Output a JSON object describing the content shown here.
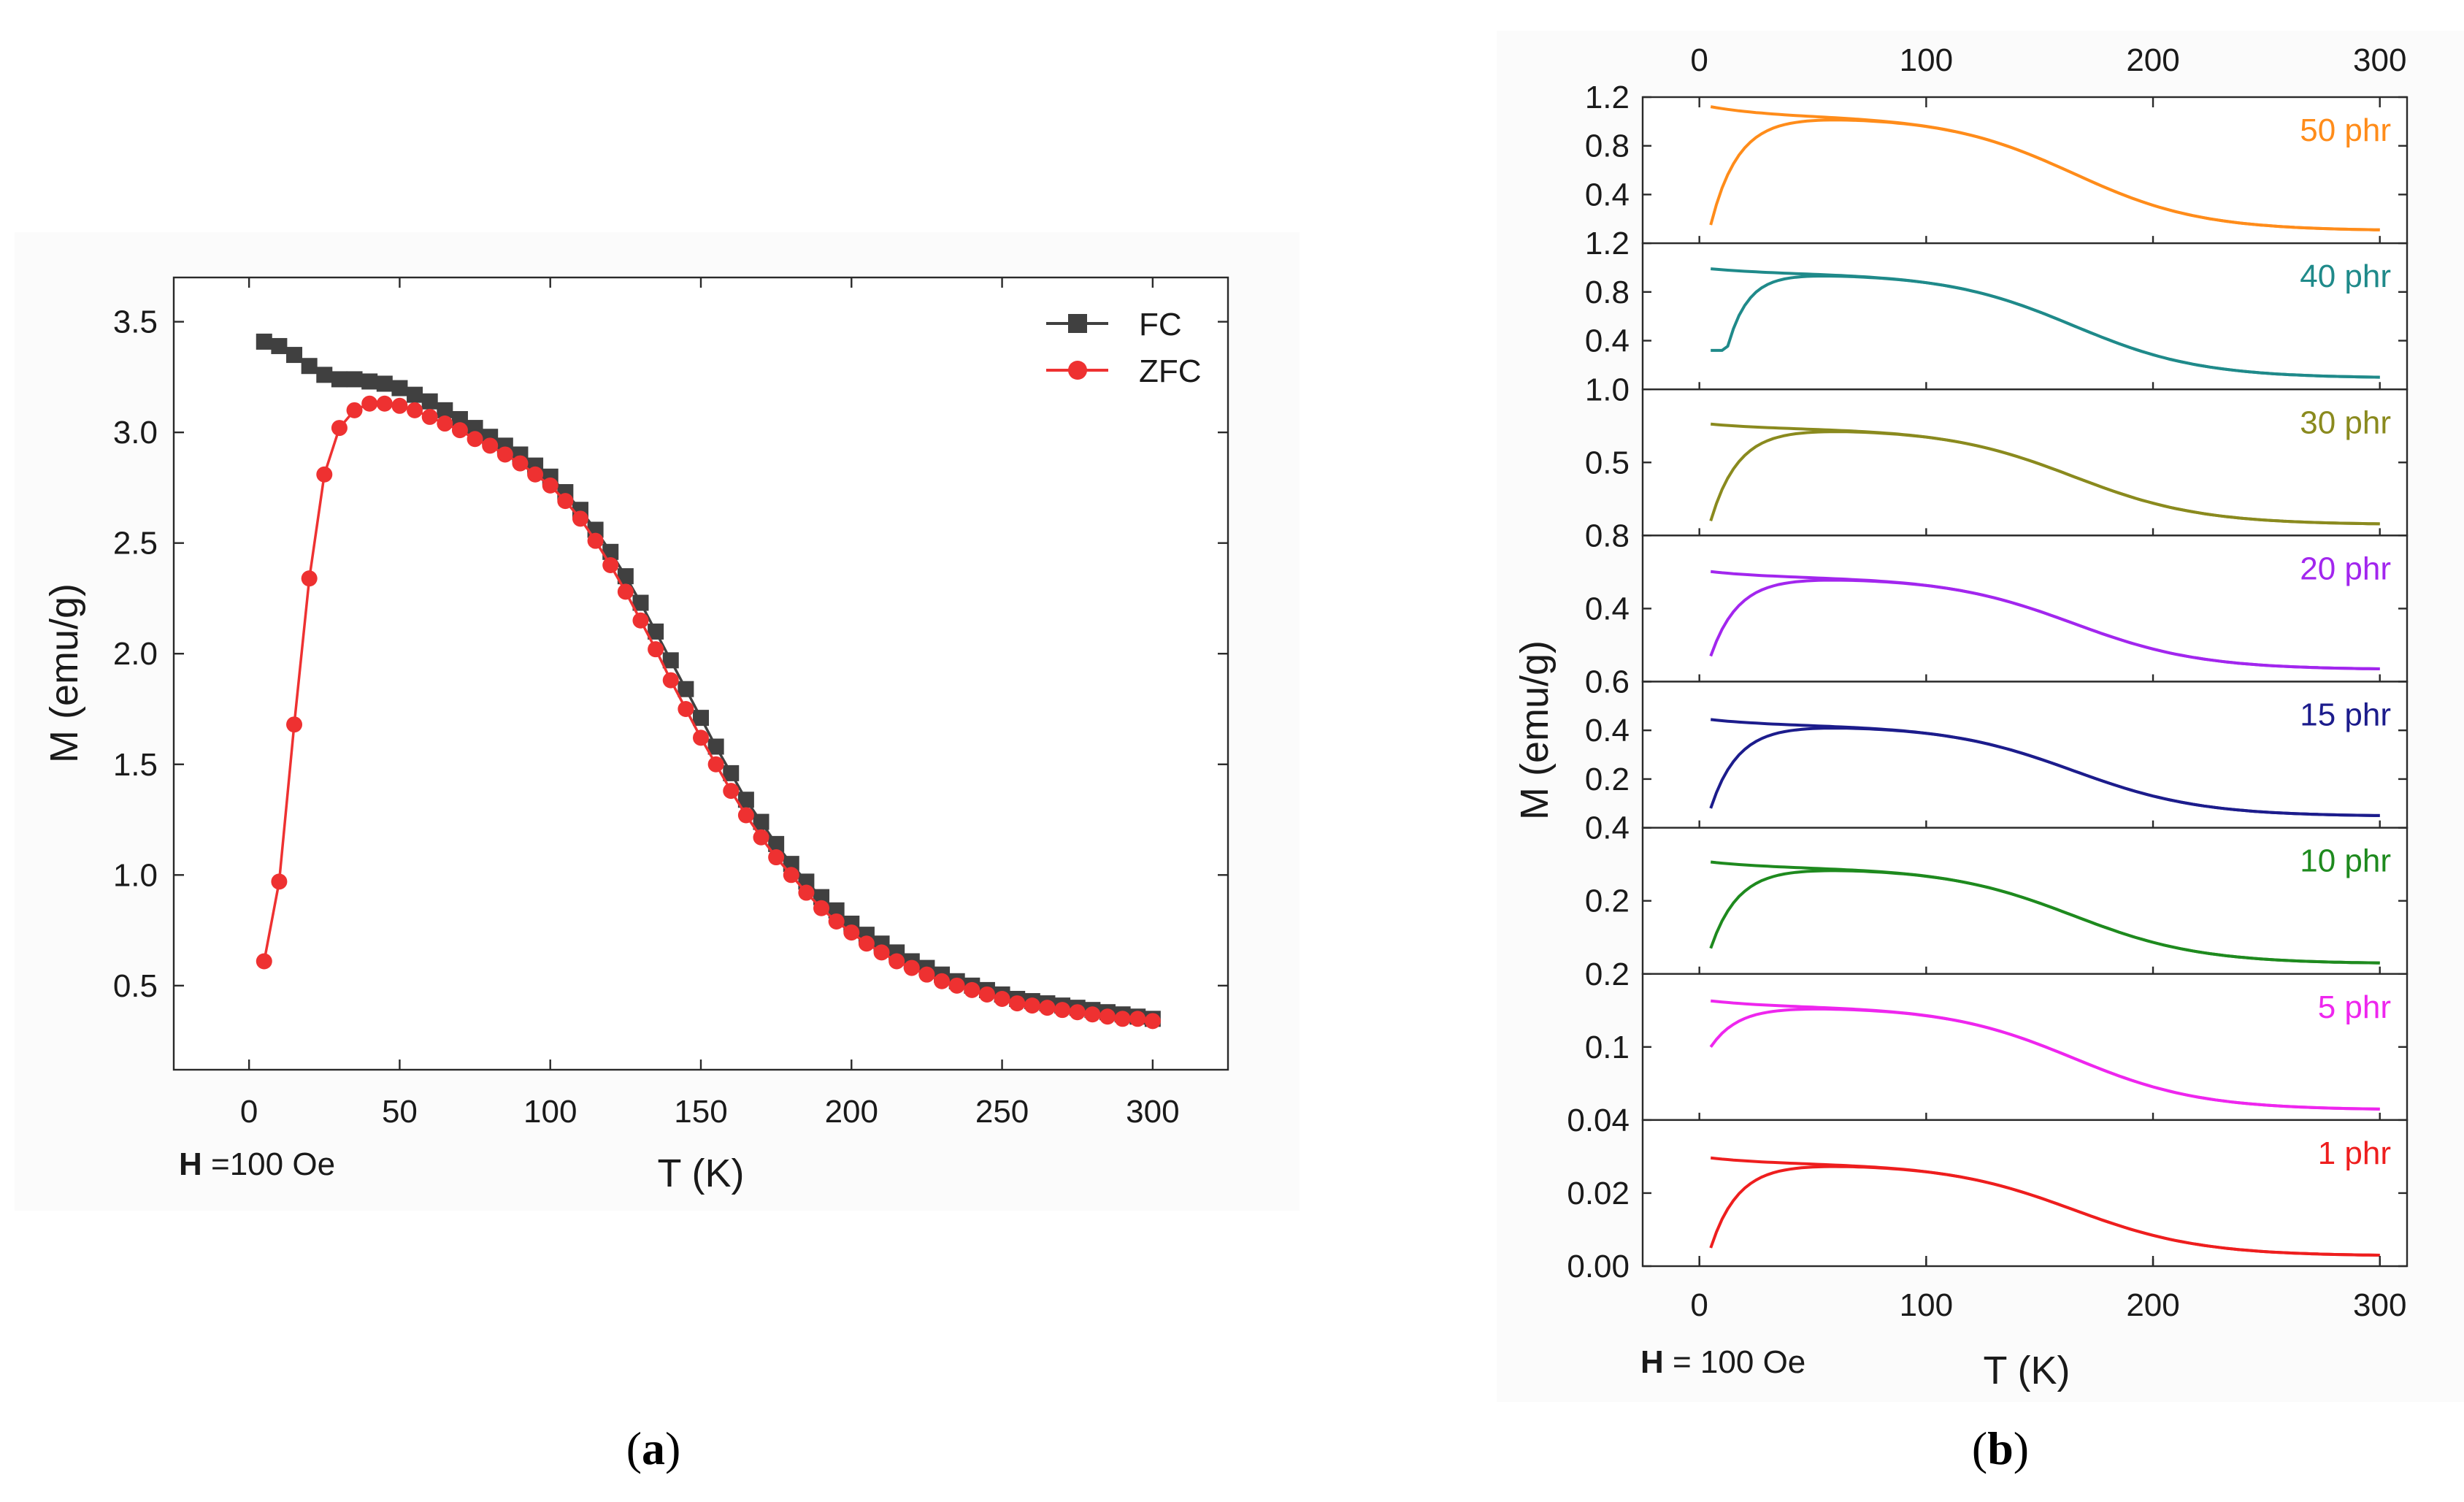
{
  "figure": {
    "caption_a": {
      "open": "(",
      "letter": "a",
      "close": ")"
    },
    "caption_b": {
      "open": "(",
      "letter": "b",
      "close": ")"
    }
  },
  "chart_data": [
    {
      "id": "a",
      "type": "line",
      "title": "",
      "xlabel": "T (K)",
      "ylabel": "M (emu/g)",
      "xlim": [
        -25,
        325
      ],
      "ylim": [
        0.12,
        3.7
      ],
      "xticks": [
        0,
        50,
        100,
        150,
        200,
        250,
        300
      ],
      "yticks": [
        0.5,
        1.0,
        1.5,
        2.0,
        2.5,
        3.0,
        3.5
      ],
      "ytick_labels": [
        "0.5",
        "1.0",
        "1.5",
        "2.0",
        "2.5",
        "3.0",
        "3.5"
      ],
      "annotation": {
        "bold": "H",
        "rest": " =100 Oe"
      },
      "legend_position": "top-right",
      "series": [
        {
          "name": "FC",
          "color": "#404040",
          "marker": "square",
          "x": [
            5,
            10,
            15,
            20,
            25,
            30,
            35,
            40,
            45,
            50,
            55,
            60,
            65,
            70,
            75,
            80,
            85,
            90,
            95,
            100,
            105,
            110,
            115,
            120,
            125,
            130,
            135,
            140,
            145,
            150,
            155,
            160,
            165,
            170,
            175,
            180,
            185,
            190,
            195,
            200,
            205,
            210,
            215,
            220,
            225,
            230,
            235,
            240,
            245,
            250,
            255,
            260,
            265,
            270,
            275,
            280,
            285,
            290,
            295,
            300
          ],
          "y": [
            3.41,
            3.39,
            3.35,
            3.3,
            3.26,
            3.24,
            3.24,
            3.23,
            3.22,
            3.2,
            3.17,
            3.14,
            3.1,
            3.06,
            3.02,
            2.98,
            2.94,
            2.9,
            2.85,
            2.8,
            2.73,
            2.65,
            2.56,
            2.46,
            2.35,
            2.23,
            2.1,
            1.97,
            1.84,
            1.71,
            1.58,
            1.46,
            1.34,
            1.24,
            1.14,
            1.05,
            0.97,
            0.9,
            0.84,
            0.78,
            0.73,
            0.69,
            0.65,
            0.61,
            0.58,
            0.55,
            0.52,
            0.5,
            0.48,
            0.46,
            0.44,
            0.43,
            0.42,
            0.41,
            0.4,
            0.39,
            0.38,
            0.37,
            0.36,
            0.35
          ]
        },
        {
          "name": "ZFC",
          "color": "#ee3131",
          "marker": "circle",
          "x": [
            5,
            10,
            15,
            20,
            25,
            30,
            35,
            40,
            45,
            50,
            55,
            60,
            65,
            70,
            75,
            80,
            85,
            90,
            95,
            100,
            105,
            110,
            115,
            120,
            125,
            130,
            135,
            140,
            145,
            150,
            155,
            160,
            165,
            170,
            175,
            180,
            185,
            190,
            195,
            200,
            205,
            210,
            215,
            220,
            225,
            230,
            235,
            240,
            245,
            250,
            255,
            260,
            265,
            270,
            275,
            280,
            285,
            290,
            295,
            300
          ],
          "y": [
            0.61,
            0.97,
            1.68,
            2.34,
            2.81,
            3.02,
            3.1,
            3.13,
            3.13,
            3.12,
            3.1,
            3.07,
            3.04,
            3.01,
            2.97,
            2.94,
            2.9,
            2.86,
            2.81,
            2.76,
            2.69,
            2.61,
            2.51,
            2.4,
            2.28,
            2.15,
            2.02,
            1.88,
            1.75,
            1.62,
            1.5,
            1.38,
            1.27,
            1.17,
            1.08,
            1.0,
            0.92,
            0.85,
            0.79,
            0.74,
            0.69,
            0.65,
            0.61,
            0.58,
            0.55,
            0.52,
            0.5,
            0.48,
            0.46,
            0.44,
            0.42,
            0.41,
            0.4,
            0.39,
            0.38,
            0.37,
            0.36,
            0.35,
            0.35,
            0.34
          ]
        }
      ]
    },
    {
      "id": "b",
      "type": "line",
      "title": "",
      "xlabel": "T (K)",
      "ylabel": "M (emu/g)",
      "xlim": [
        -25,
        312
      ],
      "xticks": [
        0,
        100,
        200,
        300
      ],
      "annotation": {
        "bold": "H",
        "rest": " = 100 Oe"
      },
      "subplots": [
        {
          "label": "50 phr",
          "color": "#ff8c1a",
          "ylim": [
            0.0,
            1.2
          ],
          "yticks": [
            1.2,
            0.8,
            0.4
          ],
          "ytick_labels": [
            "1.2",
            "0.8",
            "0.4"
          ],
          "fc_start": 1.14,
          "plateau": 1.04,
          "tail": 0.11,
          "zfc_start": 0.15,
          "knee": 0
        },
        {
          "label": "40 phr",
          "color": "#1f8a8a",
          "ylim": [
            0.0,
            1.2
          ],
          "yticks": [
            1.2,
            0.8,
            0.4
          ],
          "ytick_labels": [
            "1.2",
            "0.8",
            "0.4"
          ],
          "fc_start": 1.0,
          "plateau": 0.95,
          "tail": 0.1,
          "zfc_start": 0.32,
          "knee": 1
        },
        {
          "label": "30 phr",
          "color": "#8a8a1e",
          "ylim": [
            0.0,
            1.0
          ],
          "yticks": [
            1.0,
            0.5
          ],
          "ytick_labels": [
            "1.0",
            "0.5"
          ],
          "fc_start": 0.77,
          "plateau": 0.73,
          "tail": 0.08,
          "zfc_start": 0.1,
          "knee": 0
        },
        {
          "label": "20 phr",
          "color": "#a226ee",
          "ylim": [
            0.0,
            0.8
          ],
          "yticks": [
            0.8,
            0.4
          ],
          "ytick_labels": [
            "0.8",
            "0.4"
          ],
          "fc_start": 0.61,
          "plateau": 0.57,
          "tail": 0.07,
          "zfc_start": 0.14,
          "knee": 0
        },
        {
          "label": "15 phr",
          "color": "#1c1c8c",
          "ylim": [
            0.0,
            0.6
          ],
          "yticks": [
            0.6,
            0.4,
            0.2
          ],
          "ytick_labels": [
            "0.6",
            "0.4",
            "0.2"
          ],
          "fc_start": 0.45,
          "plateau": 0.42,
          "tail": 0.05,
          "zfc_start": 0.08,
          "knee": 0
        },
        {
          "label": "10 phr",
          "color": "#1e8a1e",
          "ylim": [
            0.0,
            0.4
          ],
          "yticks": [
            0.4,
            0.2
          ],
          "ytick_labels": [
            "0.4",
            "0.2"
          ],
          "fc_start": 0.31,
          "plateau": 0.29,
          "tail": 0.03,
          "zfc_start": 0.07,
          "knee": 0
        },
        {
          "label": "5 phr",
          "color": "#ee26ee",
          "ylim": [
            0.0,
            0.2
          ],
          "yticks": [
            0.2,
            0.1
          ],
          "ytick_labels": [
            "0.2",
            "0.1"
          ],
          "fc_start": 0.165,
          "plateau": 0.155,
          "tail": 0.015,
          "zfc_start": 0.1,
          "knee": 0
        },
        {
          "label": "1 phr",
          "color": "#ee1e1e",
          "ylim": [
            0.0,
            0.04
          ],
          "yticks": [
            0.04,
            0.02,
            0.0
          ],
          "ytick_labels": [
            "0.04",
            "0.02",
            "0.00"
          ],
          "fc_start": 0.03,
          "plateau": 0.028,
          "tail": 0.003,
          "zfc_start": 0.005,
          "knee": 0
        }
      ]
    }
  ]
}
